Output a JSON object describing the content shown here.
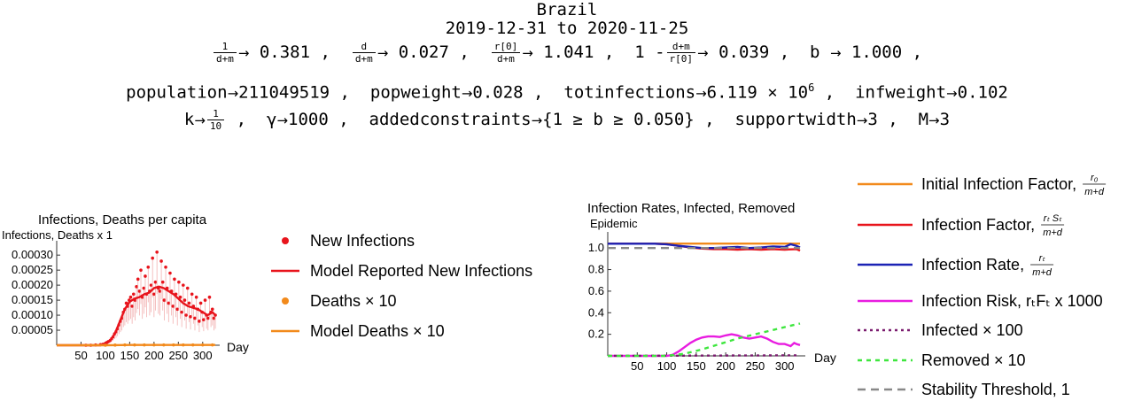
{
  "header": {
    "country": "Brazil",
    "date_range": "2019-12-31 to 2020-11-25",
    "row1": {
      "frac1_num": "1",
      "frac1_den": "d+m",
      "frac1_val": "0.381 ,",
      "frac2_num": "d",
      "frac2_den": "d+m",
      "frac2_val": "0.027 ,",
      "frac3_num": "r[0]",
      "frac3_den": "d+m",
      "frac3_val": "1.041 ,",
      "frac4_prefix": "1 -",
      "frac4_num": "d+m",
      "frac4_den": "r[0]",
      "frac4_val": "0.039 ,",
      "b_label": "b",
      "b_val": "1.000 ,"
    },
    "row2": {
      "population_label": "population",
      "population_val": "211049519 ,",
      "popweight_label": "popweight",
      "popweight_val": "0.028 ,",
      "totinfections_label": "totinfections",
      "totinfections_val": "6.119 × 10",
      "totinfections_exp": "6",
      "totinfections_sep": ",",
      "infweight_label": "infweight",
      "infweight_val": "0.102"
    },
    "row3": {
      "k_label": "k",
      "k_num": "1",
      "k_den": "10",
      "k_sep": ",",
      "gamma_label": "γ",
      "gamma_val": "1000 ,",
      "constraints_label": "addedconstraints",
      "constraints_val": "{1 ≥ b ≥ 0.050} ,",
      "supportwidth_label": "supportwidth",
      "supportwidth_val": "3 ,",
      "M_label": "M",
      "M_val": "3"
    }
  },
  "chart_data": [
    {
      "type": "scatter",
      "title": "Infections, Deaths per capita",
      "ylabel": "Infections, Deaths x 1",
      "xlabel": "Day",
      "xlim": [
        0,
        335
      ],
      "ylim": [
        0,
        0.00033
      ],
      "x_ticks": [
        50,
        100,
        150,
        200,
        250,
        300
      ],
      "y_ticks": [
        "0.00005",
        "0.00010",
        "0.00015",
        "0.00020",
        "0.00025",
        "0.00030"
      ],
      "y_tick_values": [
        5e-05,
        0.0001,
        0.00015,
        0.0002,
        0.00025,
        0.0003
      ],
      "series": [
        {
          "name": "New Infections",
          "color": "#e8141c",
          "kind": "points",
          "x": [
            60,
            70,
            80,
            90,
            95,
            100,
            103,
            106,
            110,
            113,
            116,
            119,
            122,
            125,
            128,
            131,
            134,
            137,
            140,
            143,
            146,
            149,
            152,
            155,
            158,
            161,
            164,
            167,
            170,
            173,
            176,
            179,
            182,
            185,
            188,
            191,
            194,
            197,
            200,
            203,
            206,
            209,
            212,
            215,
            218,
            221,
            224,
            227,
            230,
            233,
            236,
            239,
            242,
            245,
            248,
            251,
            254,
            257,
            260,
            263,
            266,
            269,
            272,
            275,
            278,
            281,
            284,
            287,
            290,
            293,
            296,
            299,
            302,
            305,
            308,
            311,
            314,
            317,
            320,
            323,
            326
          ],
          "y": [
            0,
            0,
            1e-06,
            2e-06,
            3e-06,
            6e-06,
            9e-06,
            1.2e-05,
            1.6e-05,
            2.2e-05,
            2.8e-05,
            3.8e-05,
            4.5e-05,
            5.5e-05,
            6.8e-05,
            8e-05,
            9e-05,
            0.00011,
            0.00012,
            0.00014,
            0.00013,
            0.00015,
            0.00016,
            0.00013,
            0.00017,
            0.00015,
            0.000195,
            0.00022,
            0.00018,
            0.00025,
            0.00016,
            0.00019,
            0.00023,
            0.00017,
            0.00026,
            0.00018,
            0.0002,
            0.00029,
            0.00017,
            0.00021,
            0.00031,
            0.00019,
            0.00018,
            0.00028,
            0.00021,
            0.00015,
            0.00026,
            0.00019,
            0.00014,
            0.00024,
            0.00018,
            0.00013,
            0.00022,
            0.00017,
            0.00012,
            0.00021,
            0.00016,
            0.00011,
            0.0002,
            0.00015,
            0.0001,
            0.00019,
            0.00014,
            9.5e-05,
            0.00017,
            0.00013,
            9e-05,
            0.00016,
            0.00012,
            8e-05,
            0.00014,
            0.00011,
            8.5e-05,
            0.00015,
            0.0001,
            9e-05,
            0.00016,
            0.00011,
            0.00012,
            9e-05,
            0.0001
          ]
        },
        {
          "name": "Model Reported New Infections",
          "color": "#e8141c",
          "kind": "line",
          "x": [
            0,
            90,
            100,
            110,
            120,
            130,
            140,
            150,
            160,
            170,
            180,
            190,
            200,
            210,
            220,
            230,
            240,
            250,
            260,
            270,
            280,
            290,
            300,
            310,
            320,
            326
          ],
          "y": [
            0,
            0,
            5e-06,
            1.5e-05,
            4e-05,
            8e-05,
            0.00012,
            0.000145,
            0.000155,
            0.00016,
            0.00017,
            0.000175,
            0.00019,
            0.000195,
            0.00019,
            0.00018,
            0.00017,
            0.000155,
            0.00014,
            0.00013,
            0.000125,
            0.00012,
            0.00011,
            0.0001,
            0.00011,
            0.0001
          ]
        },
        {
          "name": "Deaths × 10",
          "color": "#f28a1c",
          "kind": "points",
          "x": [
            100,
            120,
            140,
            160,
            180,
            200,
            220,
            240,
            260,
            280,
            300,
            320
          ],
          "y": [
            0,
            5e-07,
            1e-06,
            1e-06,
            1e-06,
            1e-06,
            1e-06,
            1e-06,
            1e-06,
            1e-06,
            1e-06,
            1e-06
          ]
        },
        {
          "name": "Model Deaths × 10",
          "color": "#f28a1c",
          "kind": "line",
          "x": [
            0,
            100,
            150,
            200,
            250,
            300,
            326
          ],
          "y": [
            0,
            0,
            1e-06,
            1e-06,
            1e-06,
            1e-06,
            1e-06
          ]
        }
      ]
    },
    {
      "type": "line",
      "title": "Infection Rates, Infected, Removed",
      "ylabel": "Epidemic",
      "xlabel": "Day",
      "xlim": [
        0,
        335
      ],
      "ylim": [
        0,
        1.1
      ],
      "x_ticks": [
        50,
        100,
        150,
        200,
        250,
        300
      ],
      "y_ticks": [
        "0.2",
        "0.4",
        "0.6",
        "0.8",
        "1.0"
      ],
      "y_tick_values": [
        0.2,
        0.4,
        0.6,
        0.8,
        1.0
      ],
      "series": [
        {
          "name": "Initial Infection Factor",
          "color": "#f28a1c",
          "dash": "",
          "x": [
            0,
            326
          ],
          "y": [
            1.041,
            1.041
          ]
        },
        {
          "name": "Infection Factor",
          "color": "#e8141c",
          "dash": "",
          "x": [
            0,
            80,
            100,
            120,
            140,
            160,
            180,
            200,
            220,
            240,
            260,
            280,
            300,
            320,
            326
          ],
          "y": [
            1.04,
            1.04,
            1.035,
            1.02,
            1.005,
            0.995,
            0.99,
            0.99,
            0.985,
            0.99,
            0.985,
            0.99,
            0.985,
            0.99,
            0.975
          ]
        },
        {
          "name": "Infection Rate",
          "color": "#1c23b5",
          "dash": "",
          "x": [
            0,
            80,
            100,
            120,
            140,
            160,
            180,
            200,
            220,
            240,
            260,
            280,
            300,
            310,
            320,
            326
          ],
          "y": [
            1.04,
            1.04,
            1.035,
            1.02,
            1.01,
            1.0,
            1.0,
            1.005,
            1.01,
            1.0,
            1.005,
            1.015,
            1.01,
            1.035,
            1.02,
            1.005
          ]
        },
        {
          "name": "Infection Risk",
          "color": "#e81ce0",
          "dash": "",
          "x": [
            0,
            100,
            110,
            120,
            130,
            140,
            150,
            160,
            170,
            180,
            190,
            200,
            210,
            220,
            230,
            240,
            250,
            260,
            270,
            280,
            290,
            300,
            310,
            316,
            320,
            326
          ],
          "y": [
            0,
            0,
            0.01,
            0.04,
            0.08,
            0.12,
            0.15,
            0.17,
            0.18,
            0.18,
            0.175,
            0.19,
            0.2,
            0.19,
            0.17,
            0.16,
            0.17,
            0.18,
            0.16,
            0.13,
            0.11,
            0.11,
            0.09,
            0.12,
            0.11,
            0.1
          ]
        },
        {
          "name": "Infected × 100",
          "color": "#7a1a6e",
          "dash": "3,4",
          "x": [
            0,
            326
          ],
          "y": [
            0,
            0.005
          ]
        },
        {
          "name": "Removed × 10",
          "color": "#3ee63e",
          "dash": "5,5",
          "x": [
            0,
            100,
            130,
            160,
            190,
            220,
            250,
            280,
            310,
            326
          ],
          "y": [
            0,
            0,
            0.02,
            0.06,
            0.11,
            0.16,
            0.2,
            0.24,
            0.28,
            0.3
          ]
        },
        {
          "name": "Stability Threshold, 1",
          "color": "#888888",
          "dash": "9,6",
          "x": [
            0,
            326
          ],
          "y": [
            1.0,
            1.0
          ]
        }
      ]
    }
  ],
  "legend1": [
    {
      "label": "New Infections",
      "color": "#e8141c",
      "kind": "point"
    },
    {
      "label": "Model Reported New Infections",
      "color": "#e8141c",
      "kind": "line"
    },
    {
      "label": "Deaths × 10",
      "color": "#f28a1c",
      "kind": "point"
    },
    {
      "label": "Model Deaths × 10",
      "color": "#f28a1c",
      "kind": "line"
    }
  ],
  "legend2": [
    {
      "label": "Initial Infection Factor,",
      "color": "#f28a1c",
      "dash": "",
      "frac_num": "r₀",
      "frac_den": "m+d"
    },
    {
      "label": "Infection Factor,",
      "color": "#e8141c",
      "dash": "",
      "frac_num": "rₜ Sₜ",
      "frac_den": "m+d"
    },
    {
      "label": "Infection Rate,",
      "color": "#1c23b5",
      "dash": "",
      "frac_num": "rₜ",
      "frac_den": "m+d"
    },
    {
      "label": "Infection Risk, rₜFₜ x 1000",
      "color": "#e81ce0",
      "dash": ""
    },
    {
      "label": "Infected × 100",
      "color": "#7a1a6e",
      "dash": "3,4"
    },
    {
      "label": "Removed × 10",
      "color": "#3ee63e",
      "dash": "5,5"
    },
    {
      "label": "Stability Threshold, 1",
      "color": "#888888",
      "dash": "9,6"
    }
  ]
}
